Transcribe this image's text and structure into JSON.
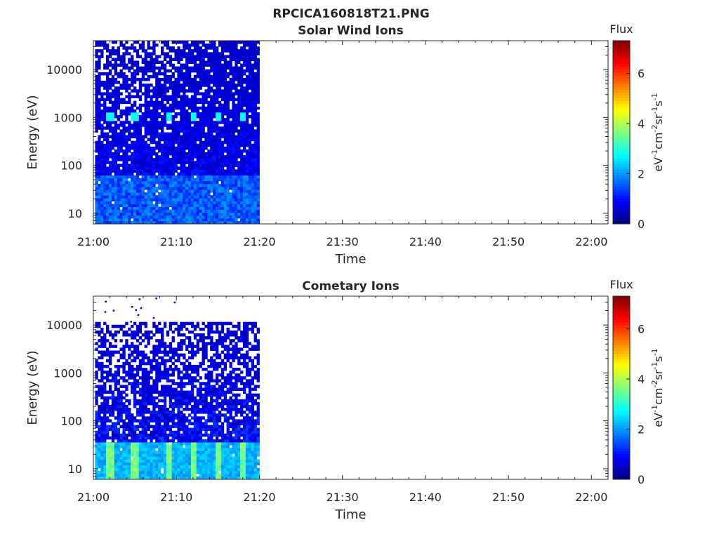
{
  "figure_title": "RPCICA160818T21.PNG",
  "chart_data": [
    {
      "type": "heatmap",
      "title": "Solar Wind Ions",
      "xlabel": "Time",
      "ylabel": "Energy (eV)",
      "x_range": [
        "21:00",
        "22:02"
      ],
      "x_ticks": [
        "21:00",
        "21:10",
        "21:20",
        "21:30",
        "21:40",
        "21:50",
        "22:00"
      ],
      "y_scale": "log",
      "y_range": [
        6,
        40000
      ],
      "y_ticks": [
        "10",
        "100",
        "1000",
        "10000"
      ],
      "data_time_span": [
        "21:00",
        "21:20"
      ],
      "colorbar": {
        "label": "Flux",
        "unit": "eV-1cm-2sr-1s-1",
        "range": [
          0,
          7.3
        ],
        "ticks": [
          "0",
          "2",
          "4",
          "6"
        ],
        "colormap": "jet"
      },
      "features": {
        "peak_energy_eV": 1000,
        "peak_flux": 2.8,
        "peak_times": [
          "21:02",
          "21:05",
          "21:09",
          "21:12",
          "21:15",
          "21:18"
        ],
        "low_energy_flux": 2.0
      }
    },
    {
      "type": "heatmap",
      "title": "Cometary Ions",
      "xlabel": "Time",
      "ylabel": "Energy (eV)",
      "x_range": [
        "21:00",
        "22:02"
      ],
      "x_ticks": [
        "21:00",
        "21:10",
        "21:20",
        "21:30",
        "21:40",
        "21:50",
        "22:00"
      ],
      "y_scale": "log",
      "y_range": [
        6,
        40000
      ],
      "y_ticks": [
        "10",
        "100",
        "1000",
        "10000"
      ],
      "data_time_span": [
        "21:00",
        "21:20"
      ],
      "colorbar": {
        "label": "Flux",
        "unit": "eV-1cm-2sr-1s-1",
        "range": [
          0,
          7.3
        ],
        "ticks": [
          "0",
          "2",
          "4",
          "6"
        ],
        "colormap": "jet"
      },
      "features": {
        "upper_energy_limit_eV": 11000,
        "peak_energy_eV": 15,
        "peak_flux": 4.0,
        "peak_times": [
          "21:02",
          "21:05",
          "21:09",
          "21:12",
          "21:15",
          "21:18"
        ]
      }
    }
  ]
}
